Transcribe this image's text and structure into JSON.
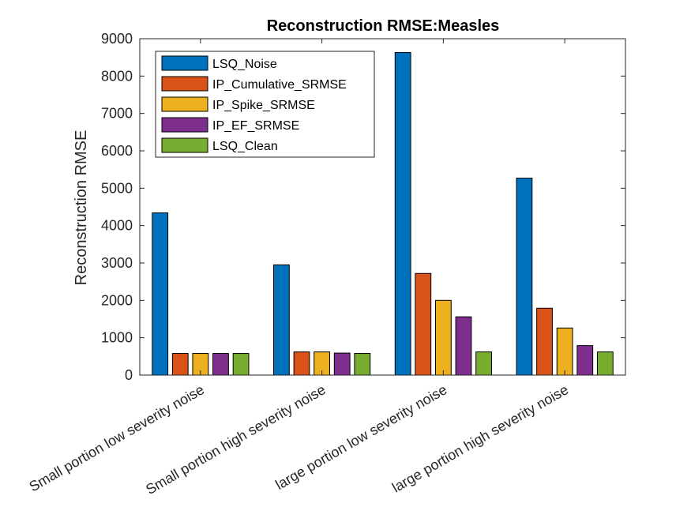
{
  "chart_data": {
    "type": "bar",
    "title": "Reconstruction RMSE:Measles",
    "xlabel": "",
    "ylabel": "Reconstruction RMSE",
    "ylim": [
      0,
      9000
    ],
    "yticks": [
      0,
      1000,
      2000,
      3000,
      4000,
      5000,
      6000,
      7000,
      8000,
      9000
    ],
    "grid": false,
    "legend_position": "top-left",
    "categories": [
      "Small portion low severity noise",
      "Small portion high severity noise",
      "large portion low severity noise",
      "large portion high severity noise"
    ],
    "series": [
      {
        "name": "LSQ_Noise",
        "color": "#0072BD",
        "values": [
          4340,
          2950,
          8630,
          5270
        ]
      },
      {
        "name": "IP_Cumulative_SRMSE",
        "color": "#D95319",
        "values": [
          580,
          620,
          2720,
          1790
        ]
      },
      {
        "name": "IP_Spike_SRMSE",
        "color": "#EDB120",
        "values": [
          580,
          620,
          2000,
          1260
        ]
      },
      {
        "name": "IP_EF_SRMSE",
        "color": "#7E2F8E",
        "values": [
          580,
          590,
          1560,
          790
        ]
      },
      {
        "name": "LSQ_Clean",
        "color": "#77AC30",
        "values": [
          580,
          580,
          620,
          620
        ]
      }
    ]
  }
}
